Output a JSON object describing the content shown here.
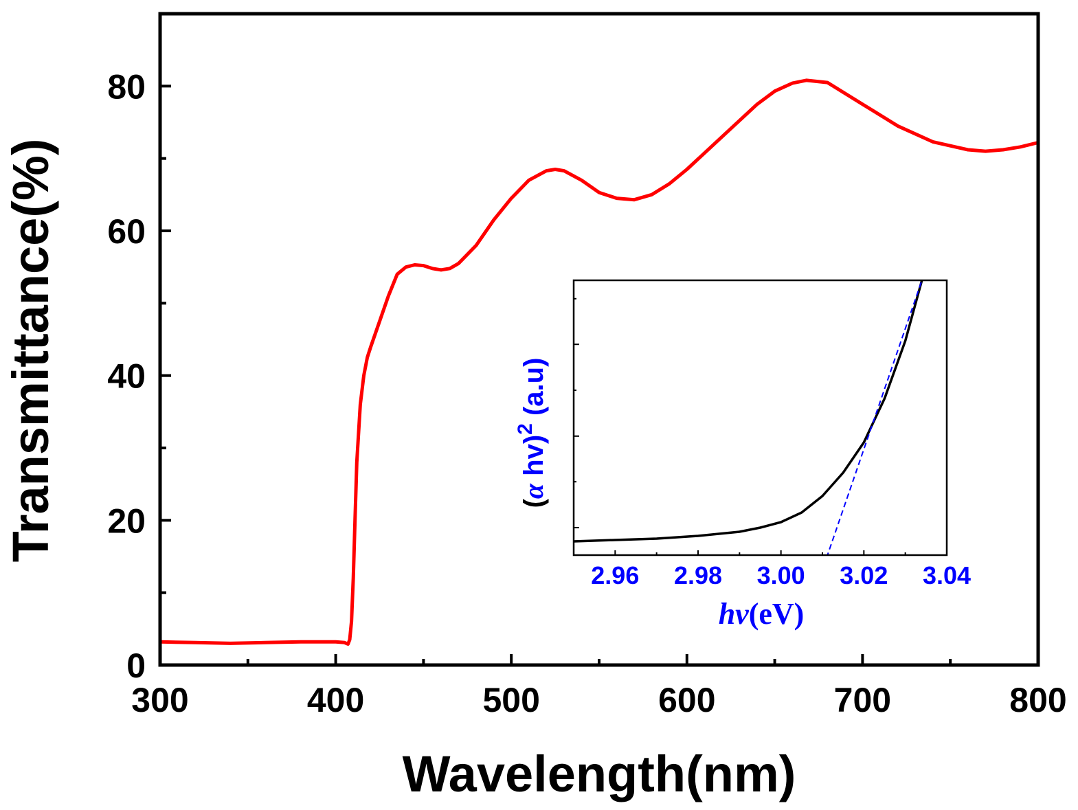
{
  "chart_data": [
    {
      "type": "line",
      "title": "",
      "xlabel": "Wavelength(nm)",
      "ylabel": "Transmittance(%)",
      "xlim": [
        300,
        800
      ],
      "ylim": [
        0,
        90
      ],
      "xticks": [
        300,
        400,
        500,
        600,
        700,
        800
      ],
      "xtick_labels": [
        "300",
        "400",
        "500",
        "600",
        "700",
        "800"
      ],
      "yticks": [
        0,
        20,
        40,
        60,
        80
      ],
      "ytick_labels": [
        "0",
        "20",
        "40",
        "60",
        "80"
      ],
      "grid": false,
      "series": [
        {
          "name": "Transmittance",
          "color": "#ff0000",
          "x": [
            300,
            320,
            340,
            360,
            380,
            400,
            405,
            407,
            408,
            409,
            410,
            411,
            412,
            414,
            416,
            418,
            420,
            425,
            430,
            435,
            440,
            445,
            450,
            455,
            460,
            465,
            470,
            480,
            490,
            500,
            510,
            520,
            525,
            530,
            540,
            550,
            560,
            570,
            580,
            590,
            600,
            620,
            640,
            650,
            660,
            668,
            680,
            700,
            720,
            740,
            760,
            770,
            780,
            790,
            800
          ],
          "y": [
            3.2,
            3.1,
            3.0,
            3.1,
            3.2,
            3.2,
            3.1,
            2.9,
            3.5,
            6.0,
            12.0,
            20.0,
            28.0,
            36.0,
            40.0,
            42.5,
            44.0,
            47.5,
            51.0,
            54.0,
            55.0,
            55.3,
            55.2,
            54.8,
            54.6,
            54.8,
            55.5,
            58.0,
            61.5,
            64.5,
            67.0,
            68.3,
            68.5,
            68.3,
            67.0,
            65.3,
            64.5,
            64.3,
            65.0,
            66.5,
            68.5,
            73.0,
            77.5,
            79.3,
            80.4,
            80.8,
            80.5,
            77.5,
            74.5,
            72.3,
            71.2,
            71.0,
            71.2,
            71.6,
            72.2
          ]
        }
      ]
    },
    {
      "type": "line",
      "title": "inset",
      "xlabel_parts": [
        "h",
        "ν",
        "(eV)"
      ],
      "ylabel_parts": [
        "(",
        "α",
        " hv)",
        "2",
        " (a.u)"
      ],
      "xlim": [
        2.95,
        3.04
      ],
      "ylim": [
        0,
        1
      ],
      "xticks": [
        2.96,
        2.98,
        3.0,
        3.02,
        3.04
      ],
      "xtick_labels": [
        "2.96",
        "2.98",
        "3.00",
        "3.02",
        "3.04"
      ],
      "yticks": [
        0.1,
        0.267,
        0.433,
        0.6,
        0.767,
        0.933
      ],
      "grid": false,
      "series": [
        {
          "name": "(αhν)^2",
          "color": "#000000",
          "x": [
            2.95,
            2.96,
            2.97,
            2.98,
            2.99,
            2.995,
            3.0,
            3.005,
            3.01,
            3.015,
            3.02,
            3.025,
            3.03,
            3.034
          ],
          "y": [
            0.05,
            0.055,
            0.06,
            0.07,
            0.085,
            0.1,
            0.12,
            0.155,
            0.215,
            0.3,
            0.41,
            0.57,
            0.78,
            1.0
          ]
        },
        {
          "name": "linear fit",
          "color": "#0000ff",
          "dashed": true,
          "x": [
            3.011,
            3.034
          ],
          "y": [
            -0.01,
            1.0
          ]
        }
      ]
    }
  ],
  "colors": {
    "main_line": "#ff0000",
    "inset_curve": "#000000",
    "inset_fit": "#0000ff",
    "inset_label": "#0000ff",
    "axis": "#000000"
  }
}
